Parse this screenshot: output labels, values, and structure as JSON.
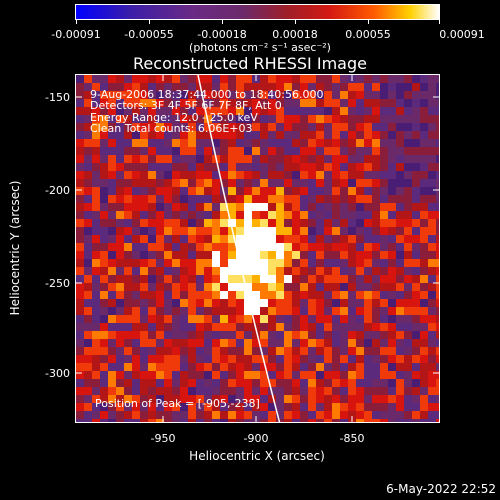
{
  "colorbar": {
    "tick_labels": [
      "-0.00091",
      "-0.00055",
      "-0.00018",
      "0.00018",
      "0.00055",
      "0.00091"
    ],
    "units": "(photons cm⁻² s⁻¹ asec⁻²)"
  },
  "plot": {
    "title": "Reconstructed RHESSI Image",
    "info": {
      "time": "9-Aug-2006 18:37:44.000 to 18:40:56.000",
      "detectors": "Detectors: 3F 4F 5F 6F 7F 8F, Att 0",
      "energy": "Energy Range: 12.0 - 25.0 keV",
      "clean": "Clean     Total counts: 6.06E+03"
    },
    "peak": "Position of Peak = [-905,-238]",
    "xlabel": "Heliocentric X (arcsec)",
    "ylabel": "Heliocentric Y (arcsec)",
    "xticks": [
      "-950",
      "-900",
      "-850"
    ],
    "yticks": [
      "-150",
      "-200",
      "-250",
      "-300"
    ],
    "peak_x": -905,
    "peak_y": -238,
    "xlim": [
      -995,
      -805
    ],
    "ylim": [
      -328,
      -143
    ]
  },
  "datestamp": "6-May-2022 22:52",
  "colors": {
    "bg": "#000000",
    "fg": "#ffffff"
  }
}
